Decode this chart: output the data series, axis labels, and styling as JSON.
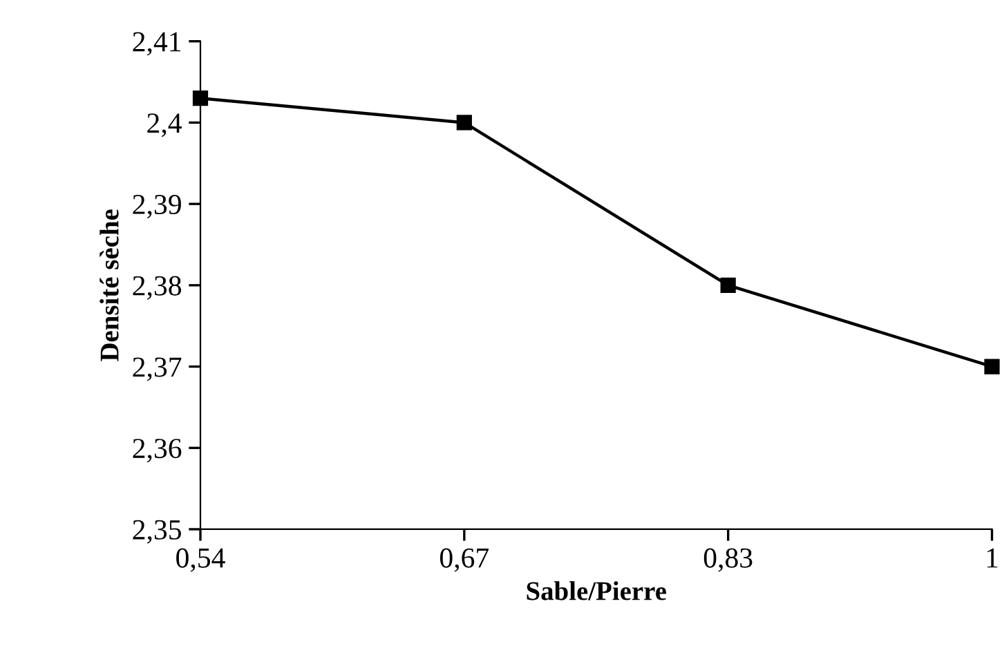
{
  "chart_data": {
    "type": "line",
    "xlabel": "Sable/Pierre",
    "ylabel": "Densité sèche",
    "categories": [
      "0,54",
      "0,67",
      "0,83",
      "1"
    ],
    "series": [
      {
        "color": "#000000",
        "values": [
          2.403,
          2.4,
          2.38,
          2.37
        ]
      }
    ],
    "ylim": [
      2.35,
      2.41
    ],
    "yticks": [
      {
        "value": 2.35,
        "label": "2,35"
      },
      {
        "value": 2.36,
        "label": "2,36"
      },
      {
        "value": 2.37,
        "label": "2,37"
      },
      {
        "value": 2.38,
        "label": "2,38"
      },
      {
        "value": 2.39,
        "label": "2,39"
      },
      {
        "value": 2.4,
        "label": "2,4"
      },
      {
        "value": 2.41,
        "label": "2,41"
      }
    ],
    "grid": false,
    "legend": false,
    "marker": "square",
    "line_style": "solid"
  }
}
